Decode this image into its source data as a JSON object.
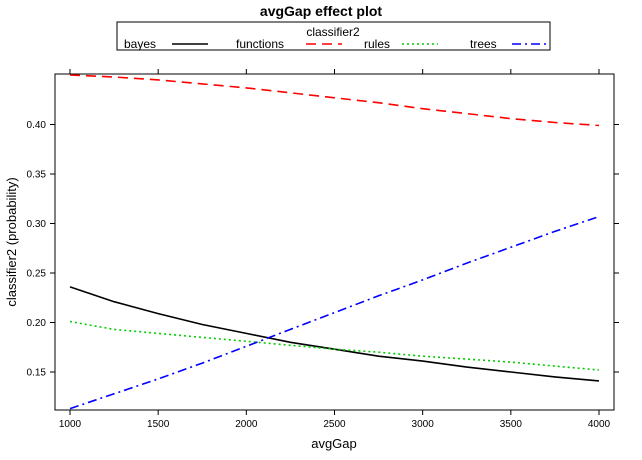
{
  "chart_data": {
    "type": "line",
    "title": "avgGap effect plot",
    "xlabel": "avgGap",
    "ylabel": "classifier2 (probability)",
    "xlim": [
      1000,
      4000
    ],
    "ylim": [
      0.11,
      0.45
    ],
    "xticks": [
      1000,
      1500,
      2000,
      2500,
      3000,
      3500,
      4000
    ],
    "yticks": [
      "0.15",
      "0.20",
      "0.25",
      "0.30",
      "0.35",
      "0.40"
    ],
    "legend": {
      "title": "classifier2",
      "placement": "top",
      "entries": [
        "bayes",
        "functions",
        "rules",
        "trees"
      ]
    },
    "x": [
      1000,
      1250,
      1500,
      1750,
      2000,
      2250,
      2500,
      2750,
      3000,
      3250,
      3500,
      3750,
      4000
    ],
    "series": [
      {
        "name": "bayes",
        "color": "#000000",
        "dash": "solid",
        "values": [
          0.236,
          0.221,
          0.209,
          0.198,
          0.189,
          0.18,
          0.173,
          0.166,
          0.161,
          0.155,
          0.15,
          0.145,
          0.141
        ]
      },
      {
        "name": "functions",
        "color": "#ff0000",
        "dash": "dashed",
        "values": [
          0.45,
          0.448,
          0.445,
          0.441,
          0.437,
          0.432,
          0.427,
          0.422,
          0.416,
          0.411,
          0.406,
          0.402,
          0.399
        ]
      },
      {
        "name": "rules",
        "color": "#00cc00",
        "dash": "dotted",
        "values": [
          0.201,
          0.193,
          0.189,
          0.185,
          0.181,
          0.177,
          0.173,
          0.17,
          0.166,
          0.163,
          0.16,
          0.156,
          0.152
        ]
      },
      {
        "name": "trees",
        "color": "#0000ff",
        "dash": "dashdot",
        "values": [
          0.113,
          0.128,
          0.143,
          0.159,
          0.176,
          0.193,
          0.21,
          0.227,
          0.243,
          0.26,
          0.276,
          0.292,
          0.307
        ]
      }
    ]
  }
}
